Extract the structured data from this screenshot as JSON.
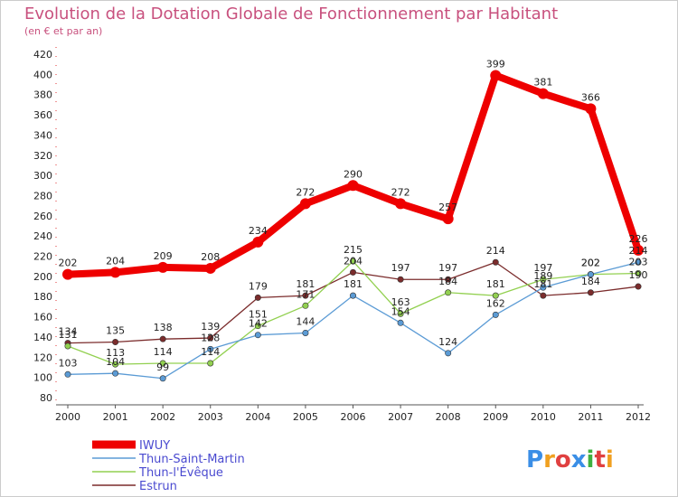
{
  "chart_data": {
    "type": "line",
    "title": "Evolution de la Dotation Globale de Fonctionnement par Habitant",
    "subtitle": "(en € et par an)",
    "xlabel": "",
    "ylabel": "",
    "x": [
      "2000",
      "2001",
      "2002",
      "2003",
      "2004",
      "2005",
      "2006",
      "2007",
      "2008",
      "2009",
      "2010",
      "2011",
      "2012"
    ],
    "ylim": [
      80,
      420
    ],
    "yticks": [
      80,
      100,
      120,
      140,
      160,
      180,
      200,
      220,
      240,
      260,
      280,
      300,
      320,
      340,
      360,
      380,
      400,
      420
    ],
    "grid": false,
    "legend_position": "bottom-left",
    "series": [
      {
        "name": "IWUY",
        "color": "#ee0000",
        "width": 8,
        "values": [
          202,
          204,
          209,
          208,
          234,
          272,
          290,
          272,
          257,
          399,
          381,
          366,
          226
        ],
        "labels": [
          "202",
          "204",
          "209",
          "208",
          "234",
          "272",
          "290",
          "272",
          "257",
          "399",
          "381",
          "366",
          "226"
        ]
      },
      {
        "name": "Thun-Saint-Martin",
        "color": "#5b9bd5",
        "width": 1.3,
        "values": [
          103,
          104,
          99,
          128,
          142,
          144,
          181,
          154,
          124,
          162,
          189,
          202,
          214
        ],
        "labels": [
          "103",
          "104",
          "99",
          "128",
          "142",
          "144",
          "181",
          "154",
          "124",
          "162",
          "189",
          "202",
          "214"
        ]
      },
      {
        "name": "Thun-l'Évêque",
        "color": "#92d050",
        "width": 1.3,
        "values": [
          131,
          113,
          114,
          114,
          151,
          171,
          215,
          163,
          184,
          181,
          197,
          202,
          203
        ],
        "labels": [
          "131",
          "113",
          "114",
          "114",
          "151",
          "171",
          "215",
          "163",
          "184",
          "181",
          "197",
          "202",
          "203"
        ]
      },
      {
        "name": "Estrun",
        "color": "#7b2c2c",
        "width": 1.3,
        "values": [
          134,
          135,
          138,
          139,
          179,
          181,
          204,
          197,
          197,
          214,
          181,
          184,
          190
        ],
        "labels": [
          "134",
          "135",
          "138",
          "139",
          "179",
          "181",
          "204",
          "197",
          "197",
          "214",
          "181",
          "184",
          "190"
        ]
      }
    ]
  },
  "watermark": "Proxiti"
}
